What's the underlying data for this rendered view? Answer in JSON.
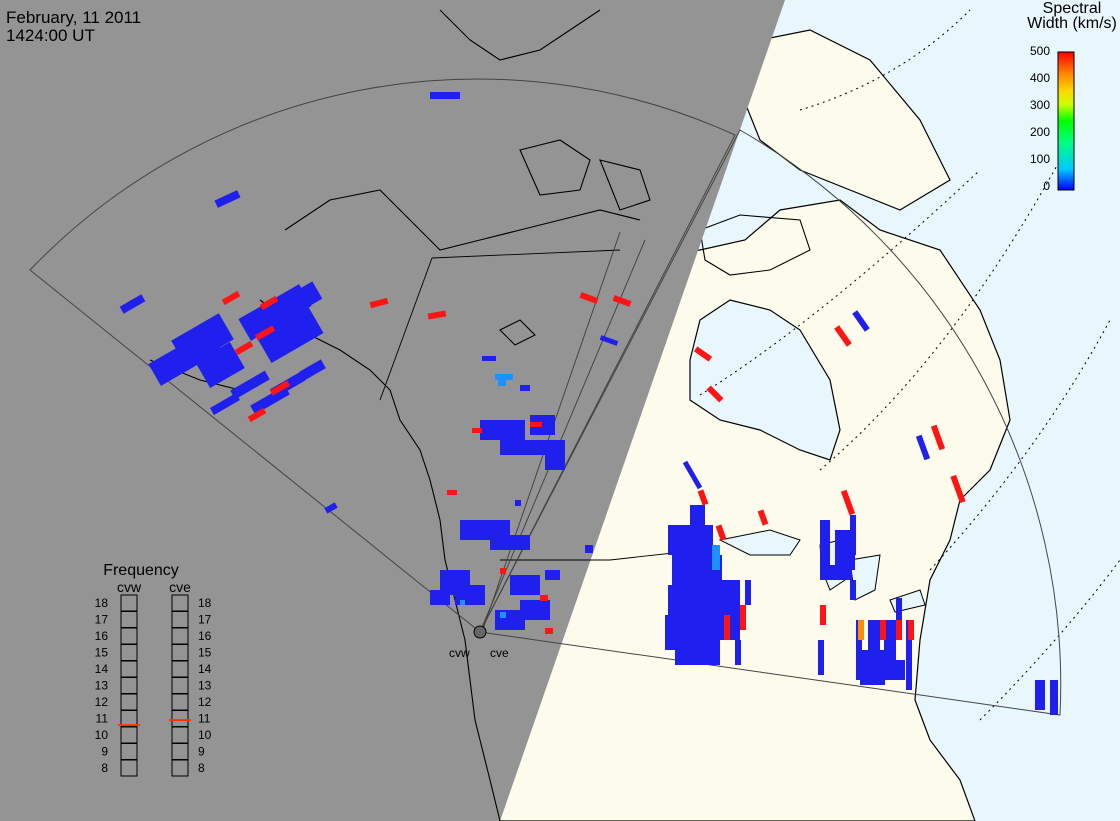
{
  "header": {
    "date": "February, 11 2011",
    "time": "1424:00 UT"
  },
  "colorbar": {
    "title_line1": "Spectral",
    "title_line2": "Width (km/s)",
    "ticks": [
      "500",
      "400",
      "300",
      "200",
      "100",
      "0"
    ],
    "range": [
      0,
      500
    ],
    "gradient": [
      "#0000ff",
      "#00c8ff",
      "#00ff80",
      "#00ff00",
      "#c8ff00",
      "#ffd700",
      "#ff8000",
      "#ff0000"
    ]
  },
  "frequency_panel": {
    "title": "Frequency",
    "radars": [
      {
        "name": "cvw",
        "frequency_mhz": 10.6
      },
      {
        "name": "cve",
        "frequency_mhz": 10.9
      }
    ],
    "scale": [
      "18",
      "17",
      "16",
      "15",
      "14",
      "13",
      "12",
      "11",
      "10",
      "9",
      "8"
    ],
    "indicator_color": "#ff3300"
  },
  "radar_sites": [
    {
      "name": "cvw"
    },
    {
      "name": "cve"
    }
  ],
  "colors": {
    "night": "#949494",
    "land_day": "#fdfbec",
    "ocean_day": "#e8f6fd",
    "echo_low": "#1f1fee",
    "echo_high": "#ff1414",
    "echo_mid": "#1e90ff",
    "echo_orange": "#ff8c00"
  }
}
